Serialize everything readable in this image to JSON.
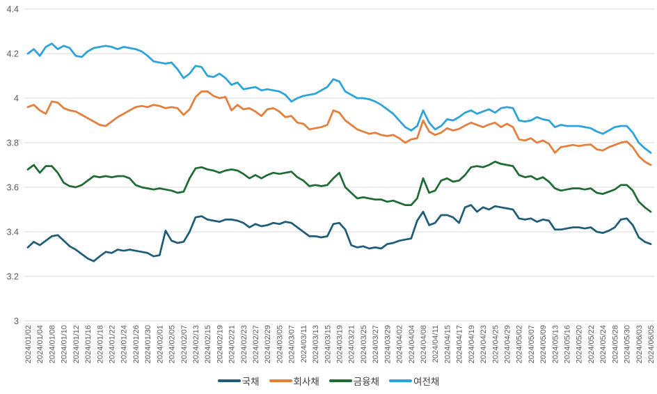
{
  "chart_data": {
    "type": "line",
    "title": "",
    "xlabel": "",
    "ylabel": "",
    "ylim": [
      3.0,
      4.4
    ],
    "yticks": [
      4.4,
      4.2,
      4.0,
      3.8,
      3.6,
      3.4,
      3.2,
      3.0
    ],
    "ytick_labels": [
      "4.4",
      "4.2",
      "4",
      "3.8",
      "3.6",
      "3.4",
      "3.2",
      "3"
    ],
    "grid": "horizontal",
    "gridline_color": "#d9d9d9",
    "axis_text_color": "#595959",
    "legend_position": "bottom",
    "x_label_every_n": 2,
    "x": [
      "2024/01/02",
      "2024/01/03",
      "2024/01/04",
      "2024/01/05",
      "2024/01/08",
      "2024/01/09",
      "2024/01/10",
      "2024/01/11",
      "2024/01/12",
      "2024/01/15",
      "2024/01/16",
      "2024/01/17",
      "2024/01/18",
      "2024/01/19",
      "2024/01/22",
      "2024/01/23",
      "2024/01/24",
      "2024/01/25",
      "2024/01/26",
      "2024/01/29",
      "2024/01/30",
      "2024/01/31",
      "2024/02/01",
      "2024/02/02",
      "2024/02/05",
      "2024/02/06",
      "2024/02/07",
      "2024/02/08",
      "2024/02/13",
      "2024/02/14",
      "2024/02/15",
      "2024/02/16",
      "2024/02/19",
      "2024/02/20",
      "2024/02/21",
      "2024/02/22",
      "2024/02/23",
      "2024/02/26",
      "2024/02/27",
      "2024/02/28",
      "2024/02/29",
      "2024/03/04",
      "2024/03/05",
      "2024/03/06",
      "2024/03/07",
      "2024/03/08",
      "2024/03/11",
      "2024/03/12",
      "2024/03/13",
      "2024/03/14",
      "2024/03/15",
      "2024/03/18",
      "2024/03/19",
      "2024/03/20",
      "2024/03/21",
      "2024/03/22",
      "2024/03/25",
      "2024/03/26",
      "2024/03/27",
      "2024/03/28",
      "2024/03/29",
      "2024/04/01",
      "2024/04/02",
      "2024/04/03",
      "2024/04/04",
      "2024/04/05",
      "2024/04/08",
      "2024/04/09",
      "2024/04/11",
      "2024/04/12",
      "2024/04/15",
      "2024/04/16",
      "2024/04/17",
      "2024/04/18",
      "2024/04/19",
      "2024/04/22",
      "2024/04/23",
      "2024/04/24",
      "2024/04/25",
      "2024/04/26",
      "2024/04/29",
      "2024/04/30",
      "2024/05/02",
      "2024/05/03",
      "2024/05/07",
      "2024/05/08",
      "2024/05/09",
      "2024/05/10",
      "2024/05/13",
      "2024/05/14",
      "2024/05/16",
      "2024/05/17",
      "2024/05/20",
      "2024/05/21",
      "2024/05/22",
      "2024/05/23",
      "2024/05/24",
      "2024/05/27",
      "2024/05/28",
      "2024/05/29",
      "2024/05/30",
      "2024/05/31",
      "2024/06/03",
      "2024/06/04",
      "2024/06/05"
    ],
    "series": [
      {
        "name": "국채",
        "key": "govt-bond",
        "color": "#1e5c78",
        "values": [
          3.33,
          3.355,
          3.34,
          3.36,
          3.38,
          3.385,
          3.36,
          3.335,
          3.32,
          3.3,
          3.28,
          3.268,
          3.29,
          3.31,
          3.305,
          3.32,
          3.315,
          3.32,
          3.315,
          3.31,
          3.305,
          3.29,
          3.295,
          3.405,
          3.36,
          3.35,
          3.355,
          3.4,
          3.465,
          3.47,
          3.455,
          3.45,
          3.445,
          3.455,
          3.455,
          3.45,
          3.44,
          3.42,
          3.435,
          3.425,
          3.43,
          3.44,
          3.435,
          3.445,
          3.44,
          3.42,
          3.4,
          3.38,
          3.38,
          3.375,
          3.38,
          3.435,
          3.44,
          3.41,
          3.34,
          3.33,
          3.335,
          3.325,
          3.33,
          3.325,
          3.345,
          3.35,
          3.36,
          3.365,
          3.37,
          3.45,
          3.49,
          3.43,
          3.44,
          3.475,
          3.475,
          3.465,
          3.44,
          3.51,
          3.52,
          3.49,
          3.51,
          3.5,
          3.515,
          3.51,
          3.505,
          3.5,
          3.46,
          3.455,
          3.46,
          3.445,
          3.455,
          3.45,
          3.41,
          3.41,
          3.415,
          3.42,
          3.42,
          3.415,
          3.42,
          3.4,
          3.395,
          3.405,
          3.42,
          3.455,
          3.46,
          3.43,
          3.375,
          3.355,
          3.345
        ]
      },
      {
        "name": "회사채",
        "key": "corp-bond",
        "color": "#e57e3a",
        "values": [
          3.96,
          3.97,
          3.945,
          3.93,
          3.985,
          3.98,
          3.955,
          3.945,
          3.94,
          3.925,
          3.91,
          3.895,
          3.88,
          3.875,
          3.895,
          3.915,
          3.93,
          3.945,
          3.96,
          3.965,
          3.96,
          3.97,
          3.965,
          3.955,
          3.96,
          3.955,
          3.925,
          3.95,
          4.005,
          4.03,
          4.03,
          4.01,
          4.0,
          4.005,
          3.945,
          3.97,
          3.95,
          3.955,
          3.94,
          3.92,
          3.95,
          3.955,
          3.94,
          3.915,
          3.92,
          3.89,
          3.885,
          3.86,
          3.865,
          3.87,
          3.88,
          3.945,
          3.935,
          3.9,
          3.88,
          3.86,
          3.85,
          3.84,
          3.845,
          3.835,
          3.83,
          3.835,
          3.82,
          3.8,
          3.815,
          3.82,
          3.9,
          3.85,
          3.835,
          3.845,
          3.865,
          3.855,
          3.862,
          3.877,
          3.89,
          3.88,
          3.87,
          3.882,
          3.89,
          3.87,
          3.885,
          3.87,
          3.815,
          3.81,
          3.82,
          3.8,
          3.81,
          3.795,
          3.755,
          3.78,
          3.785,
          3.79,
          3.785,
          3.79,
          3.792,
          3.77,
          3.765,
          3.78,
          3.79,
          3.8,
          3.805,
          3.78,
          3.74,
          3.715,
          3.7
        ]
      },
      {
        "name": "금융채",
        "key": "financial-bond",
        "color": "#1e6b33",
        "values": [
          3.68,
          3.7,
          3.665,
          3.695,
          3.695,
          3.665,
          3.62,
          3.605,
          3.6,
          3.61,
          3.63,
          3.65,
          3.645,
          3.65,
          3.645,
          3.65,
          3.65,
          3.64,
          3.61,
          3.6,
          3.595,
          3.59,
          3.595,
          3.59,
          3.585,
          3.575,
          3.58,
          3.64,
          3.685,
          3.69,
          3.68,
          3.675,
          3.665,
          3.675,
          3.68,
          3.675,
          3.66,
          3.64,
          3.655,
          3.64,
          3.655,
          3.665,
          3.66,
          3.665,
          3.67,
          3.645,
          3.63,
          3.605,
          3.61,
          3.605,
          3.61,
          3.64,
          3.665,
          3.6,
          3.575,
          3.55,
          3.555,
          3.55,
          3.545,
          3.545,
          3.535,
          3.54,
          3.53,
          3.52,
          3.52,
          3.55,
          3.64,
          3.575,
          3.585,
          3.63,
          3.64,
          3.625,
          3.63,
          3.655,
          3.69,
          3.695,
          3.69,
          3.7,
          3.715,
          3.705,
          3.7,
          3.695,
          3.655,
          3.645,
          3.65,
          3.635,
          3.645,
          3.625,
          3.595,
          3.585,
          3.59,
          3.595,
          3.595,
          3.59,
          3.595,
          3.575,
          3.57,
          3.58,
          3.59,
          3.61,
          3.61,
          3.585,
          3.535,
          3.51,
          3.49
        ]
      },
      {
        "name": "여전채",
        "key": "specialty-finance-bond",
        "color": "#2aa3da",
        "values": [
          4.2,
          4.22,
          4.19,
          4.23,
          4.245,
          4.22,
          4.235,
          4.225,
          4.19,
          4.185,
          4.21,
          4.225,
          4.23,
          4.235,
          4.23,
          4.22,
          4.23,
          4.225,
          4.22,
          4.21,
          4.19,
          4.165,
          4.16,
          4.155,
          4.16,
          4.13,
          4.09,
          4.11,
          4.145,
          4.14,
          4.1,
          4.095,
          4.11,
          4.09,
          4.06,
          4.07,
          4.04,
          4.045,
          4.05,
          4.035,
          4.04,
          4.035,
          4.03,
          4.015,
          3.985,
          4.0,
          4.01,
          4.015,
          4.02,
          4.035,
          4.05,
          4.085,
          4.075,
          4.03,
          4.015,
          4.0,
          4.0,
          3.995,
          3.985,
          3.97,
          3.95,
          3.93,
          3.9,
          3.87,
          3.855,
          3.875,
          3.945,
          3.89,
          3.86,
          3.875,
          3.905,
          3.9,
          3.915,
          3.935,
          3.945,
          3.93,
          3.94,
          3.95,
          3.935,
          3.955,
          3.96,
          3.955,
          3.9,
          3.895,
          3.9,
          3.915,
          3.905,
          3.9,
          3.87,
          3.88,
          3.875,
          3.875,
          3.875,
          3.87,
          3.865,
          3.85,
          3.84,
          3.855,
          3.87,
          3.875,
          3.875,
          3.845,
          3.8,
          3.775,
          3.755
        ]
      }
    ]
  }
}
